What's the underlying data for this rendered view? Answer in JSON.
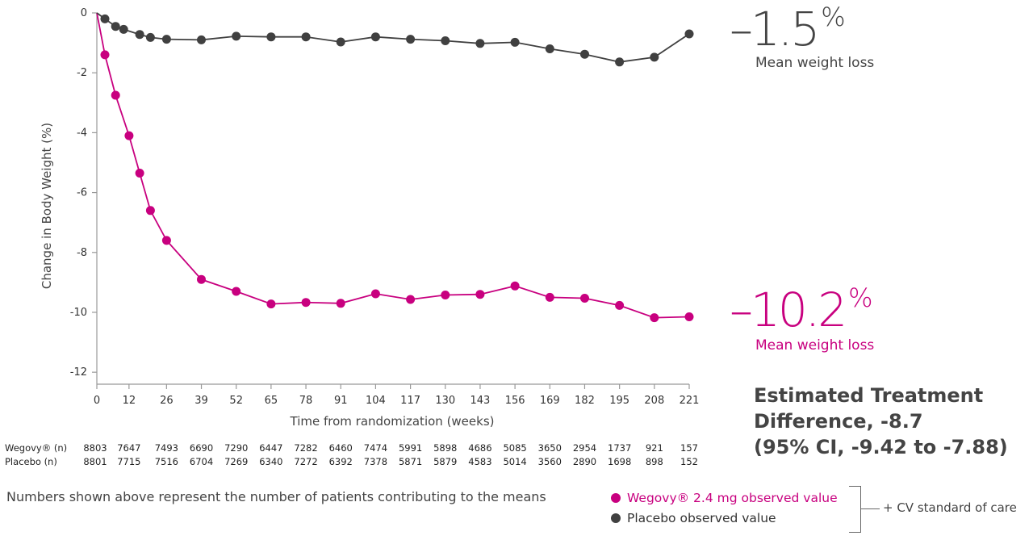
{
  "chart_data": {
    "type": "line",
    "xlabel": "Time from randomization (weeks)",
    "ylabel": "Change in Body Weight (%)",
    "xlim": [
      0,
      221
    ],
    "ylim": [
      -12.4,
      0
    ],
    "xticks": [
      0,
      12,
      26,
      39,
      52,
      65,
      78,
      91,
      104,
      117,
      130,
      143,
      156,
      169,
      182,
      195,
      208,
      221
    ],
    "yticks": [
      0,
      -2,
      -4,
      -6,
      -8,
      -10,
      -12
    ],
    "series": [
      {
        "name": "Wegovy® 2.4 mg observed value",
        "color": "#c8007f",
        "x": [
          0,
          3,
          7,
          12,
          16,
          20,
          26,
          39,
          52,
          65,
          78,
          91,
          104,
          117,
          130,
          143,
          156,
          169,
          182,
          195,
          208,
          221
        ],
        "y": [
          0,
          -1.4,
          -2.75,
          -4.1,
          -5.35,
          -6.6,
          -7.6,
          -8.9,
          -9.3,
          -9.72,
          -9.67,
          -9.7,
          -9.38,
          -9.57,
          -9.42,
          -9.4,
          -9.12,
          -9.5,
          -9.53,
          -9.77,
          -10.18,
          -10.15
        ]
      },
      {
        "name": "Placebo observed value",
        "color": "#404040",
        "x": [
          0,
          3,
          7,
          10,
          16,
          20,
          26,
          39,
          52,
          65,
          78,
          91,
          104,
          117,
          130,
          143,
          156,
          169,
          182,
          195,
          208,
          221
        ],
        "y": [
          0,
          -0.2,
          -0.45,
          -0.55,
          -0.72,
          -0.82,
          -0.88,
          -0.9,
          -0.78,
          -0.8,
          -0.8,
          -0.97,
          -0.8,
          -0.88,
          -0.93,
          -1.02,
          -0.98,
          -1.2,
          -1.38,
          -1.64,
          -1.48,
          -0.7
        ]
      }
    ],
    "annotations": {
      "placebo_pct": {
        "value": "–1.5",
        "unit": "%",
        "label": "Mean weight loss"
      },
      "wegovy_pct": {
        "value": "–10.2",
        "unit": "%",
        "label": "Mean weight loss"
      },
      "treatment_difference": [
        "Estimated Treatment",
        "Difference, -8.7",
        "(95% CI, -9.42 to -7.88)"
      ]
    },
    "n_table": {
      "weeks": [
        0,
        12,
        26,
        39,
        52,
        65,
        78,
        91,
        104,
        117,
        130,
        143,
        156,
        169,
        182,
        195,
        208,
        221
      ],
      "rows": [
        {
          "label": "Wegovy® (n)",
          "values": [
            "8803",
            "7647",
            "7493",
            "6690",
            "7290",
            "6447",
            "7282",
            "6460",
            "7474",
            "5991",
            "5898",
            "4686",
            "5085",
            "3650",
            "2954",
            "1737",
            "921",
            "157"
          ]
        },
        {
          "label": "Placebo (n)",
          "values": [
            "8801",
            "7715",
            "7516",
            "6704",
            "7269",
            "6340",
            "7272",
            "6392",
            "7378",
            "5871",
            "5879",
            "4583",
            "5014",
            "3560",
            "2890",
            "1698",
            "898",
            "152"
          ]
        }
      ]
    },
    "footnote": "Numbers shown above represent the number of patients contributing to the means",
    "legend": {
      "wegovy": "Wegovy® 2.4 mg observed value",
      "placebo": "Placebo observed value",
      "bracket_label": "+ CV standard of care"
    },
    "colors": {
      "wegovy": "#c8007f",
      "placebo": "#404040",
      "axis": "#999999"
    }
  }
}
